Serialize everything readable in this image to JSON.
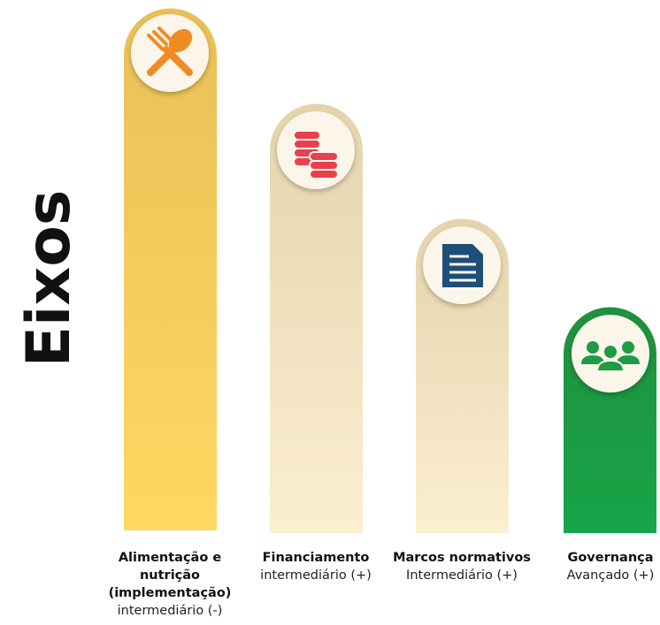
{
  "title": "Eixos",
  "items": [
    {
      "name_lines": [
        "Alimentação e",
        "nutrição",
        "(implementação)"
      ],
      "level": "intermediário (-)"
    },
    {
      "name_lines": [
        "Financiamento"
      ],
      "level": "intermediário (+)"
    },
    {
      "name_lines": [
        "Marcos normativos"
      ],
      "level": "Intermediário (+)"
    },
    {
      "name_lines": [
        "Governança"
      ],
      "level": "Avançado (+)"
    }
  ]
}
